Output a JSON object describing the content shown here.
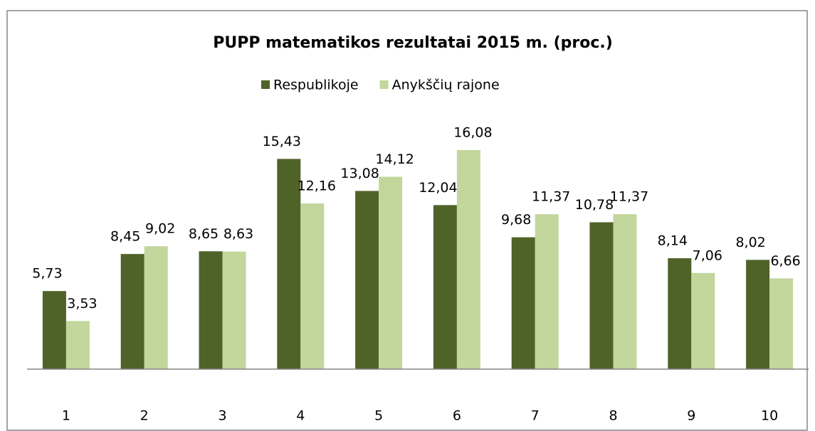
{
  "chart_data": {
    "type": "bar",
    "title": "PUPP matematikos rezultatai 2015 m. (proc.)",
    "categories": [
      "1",
      "2",
      "3",
      "4",
      "5",
      "6",
      "7",
      "8",
      "9",
      "10"
    ],
    "series": [
      {
        "name": "Respublikoje",
        "color": "#4f6228",
        "values": [
          5.73,
          8.45,
          8.65,
          15.43,
          13.08,
          12.04,
          9.68,
          10.78,
          8.14,
          8.02
        ],
        "value_labels": [
          "5,73",
          "8,45",
          "8,65",
          "15,43",
          "13,08",
          "12,04",
          "9,68",
          "10,78",
          "8,14",
          "8,02"
        ]
      },
      {
        "name": "Anykščių rajone",
        "color": "#c3d69b",
        "values": [
          3.53,
          9.02,
          8.63,
          12.16,
          14.12,
          16.08,
          11.37,
          11.37,
          7.06,
          6.66
        ],
        "value_labels": [
          "3,53",
          "9,02",
          "8,63",
          "12,16",
          "14,12",
          "16,08",
          "11,37",
          "11,37",
          "7,06",
          "6,66"
        ]
      }
    ],
    "legend": "top"
  }
}
